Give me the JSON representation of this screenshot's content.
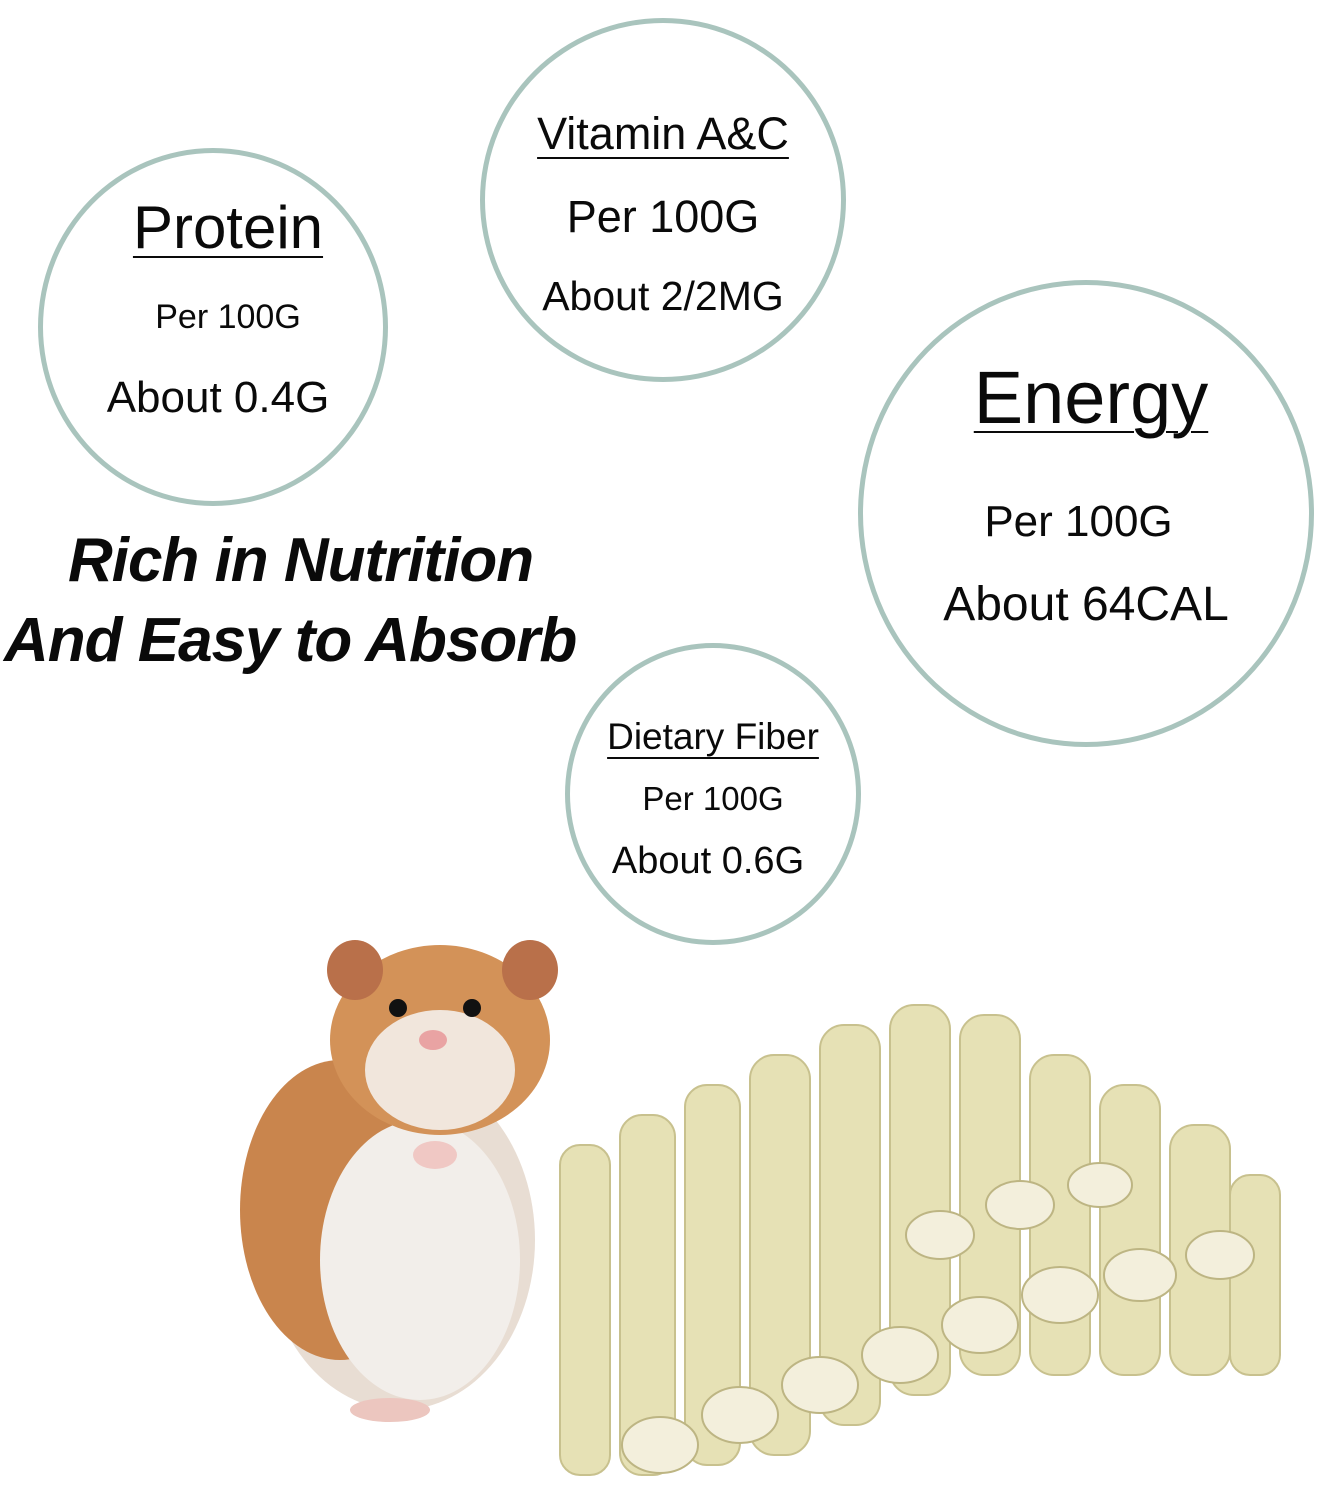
{
  "nutrients": [
    {
      "name": "Protein",
      "basis": "Per 100G",
      "amount": "About 0.4G"
    },
    {
      "name": "Vitamin A&C",
      "basis": "Per 100G",
      "amount": "About 2/2MG"
    },
    {
      "name": "Energy",
      "basis": "Per 100G",
      "amount": "About 64CAL"
    },
    {
      "name": "Dietary Fiber",
      "basis": "Per 100G",
      "amount": "About 0.6G"
    }
  ],
  "headline": {
    "line1": "Rich in Nutrition",
    "line2": "And Easy to Absorb"
  },
  "colors": {
    "circle_border": "#a9c4bd",
    "text": "#0a0a0a",
    "background": "#ffffff"
  },
  "images": [
    "hamster",
    "sweet-bamboo-sticks-pile"
  ]
}
